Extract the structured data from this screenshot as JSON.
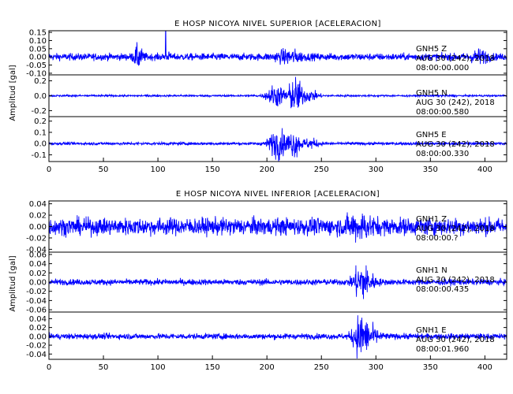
{
  "chart_data": [
    {
      "type": "line",
      "title": "E HOSP NICOYA NIVEL SUPERIOR [ACELERACION]",
      "ylabel": "Amplitud [gal]",
      "xlim": [
        0,
        420
      ],
      "x_ticks": [
        "0",
        "50",
        "100",
        "150",
        "200",
        "250",
        "300",
        "350",
        "400"
      ],
      "series_color": "#0000ff",
      "series": [
        {
          "name": "GNH5 Z",
          "lines": [
            "GNH5 Z",
            "AUG 30 (242), 2018",
            "08:00:00.000"
          ],
          "ylim": [
            -0.11,
            0.16
          ],
          "y_ticks": [
            0.15,
            0.1,
            0.05,
            0.0,
            -0.05,
            -0.1
          ],
          "y_tick_labels": [
            "0.15",
            "0.10",
            "0.05",
            "0.00",
            "-0.05",
            "-0.10"
          ],
          "noise": 0.02,
          "events": [
            {
              "t": 82,
              "amp": 0.055,
              "width": 4
            },
            {
              "t": 220,
              "amp": 0.03,
              "width": 12
            },
            {
              "t": 395,
              "amp": 0.03,
              "width": 8
            }
          ],
          "spikes": [
            {
              "t": 107,
              "v": 0.16
            },
            {
              "t": 110,
              "v": 0.03
            }
          ]
        },
        {
          "name": "GNH5 N",
          "lines": [
            "GNH5 N",
            "AUG 30 (242), 2018",
            "08:00:00.580"
          ],
          "ylim": [
            -0.28,
            0.28
          ],
          "y_ticks": [
            0.2,
            0.0,
            -0.2
          ],
          "y_tick_labels": [
            "0.2",
            "0.0",
            "-0.2"
          ],
          "noise": 0.012,
          "events": [
            {
              "t": 208,
              "amp": 0.14,
              "width": 8
            },
            {
              "t": 226,
              "amp": 0.22,
              "width": 7
            },
            {
              "t": 240,
              "amp": 0.06,
              "width": 8
            }
          ],
          "spikes": []
        },
        {
          "name": "GNH5 E",
          "lines": [
            "GNH5 E",
            "AUG 30 (242), 2018",
            "08:00:00.330"
          ],
          "ylim": [
            -0.16,
            0.24
          ],
          "y_ticks": [
            0.2,
            0.1,
            0.0,
            -0.1
          ],
          "y_tick_labels": [
            "0.2",
            "0.1",
            "0.0",
            "-0.1"
          ],
          "noise": 0.012,
          "events": [
            {
              "t": 210,
              "amp": 0.12,
              "width": 8
            },
            {
              "t": 225,
              "amp": 0.1,
              "width": 6
            },
            {
              "t": 240,
              "amp": 0.035,
              "width": 8
            }
          ],
          "spikes": []
        }
      ]
    },
    {
      "type": "line",
      "title": "E HOSP NICOYA NIVEL INFERIOR [ACELERACION]",
      "ylabel": "Amplitud [gal]",
      "xlim": [
        0,
        420
      ],
      "x_ticks": [
        "0",
        "50",
        "100",
        "150",
        "200",
        "250",
        "300",
        "350",
        "400"
      ],
      "series_color": "#0000ff",
      "series": [
        {
          "name": "GNH1 Z",
          "lines": [
            "GNH1 Z",
            "AUG 30 (242), 2018",
            "08:00:00.?"
          ],
          "ylim": [
            -0.045,
            0.045
          ],
          "y_ticks": [
            0.04,
            0.02,
            0.0,
            -0.02,
            -0.04
          ],
          "y_tick_labels": [
            "0.04",
            "0.02",
            "0.00",
            "-0.02",
            "-0.04"
          ],
          "noise": 0.014,
          "events": [
            {
              "t": 285,
              "amp": 0.012,
              "width": 12
            }
          ],
          "spikes": []
        },
        {
          "name": "GNH1 N",
          "lines": [
            "GNH1 N",
            "AUG 30 (242), 2018",
            "08:00:00.435"
          ],
          "ylim": [
            -0.065,
            0.065
          ],
          "y_ticks": [
            0.06,
            0.04,
            0.02,
            0.0,
            -0.02,
            -0.04,
            -0.06
          ],
          "y_tick_labels": [
            "0.06",
            "0.04",
            "0.02",
            "0.00",
            "-0.02",
            "-0.04",
            "-0.06"
          ],
          "noise": 0.006,
          "events": [
            {
              "t": 285,
              "amp": 0.028,
              "width": 6
            },
            {
              "t": 292,
              "amp": 0.018,
              "width": 8
            }
          ],
          "spikes": []
        },
        {
          "name": "GNH1 E",
          "lines": [
            "GNH1 E",
            "AUG 30 (242), 2018",
            "08:00:01.960"
          ],
          "ylim": [
            -0.052,
            0.055
          ],
          "y_ticks": [
            0.04,
            0.02,
            0.0,
            -0.02,
            -0.04
          ],
          "y_tick_labels": [
            "0.04",
            "0.02",
            "0.00",
            "-0.02",
            "-0.04"
          ],
          "noise": 0.006,
          "events": [
            {
              "t": 285,
              "amp": 0.03,
              "width": 6
            },
            {
              "t": 292,
              "amp": 0.022,
              "width": 10
            }
          ],
          "spikes": []
        }
      ]
    }
  ]
}
